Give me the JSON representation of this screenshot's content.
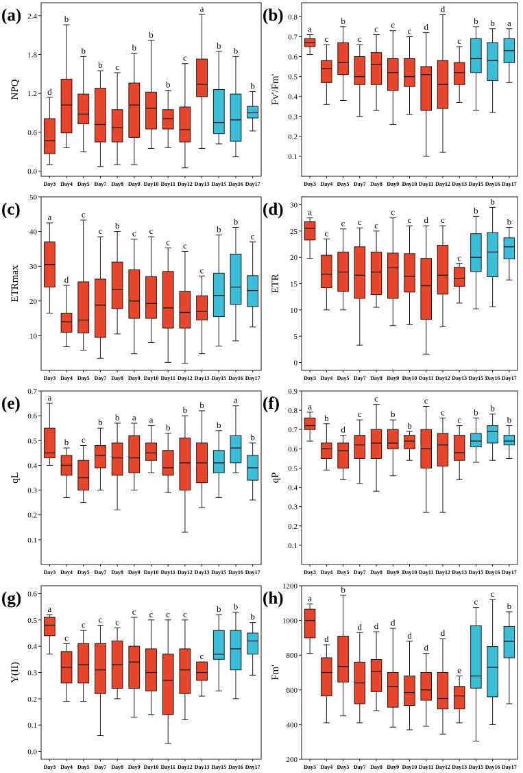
{
  "figure": {
    "colors": {
      "red": "#e8452d",
      "blue": "#3cbdd8",
      "line": "#1a1a1a"
    },
    "days": [
      "Day3",
      "Day4",
      "Day5",
      "Day7",
      "Day8",
      "Day9",
      "Day10",
      "Day11",
      "Day12",
      "Day13",
      "Day15",
      "Day16",
      "Day17"
    ],
    "groups": [
      "red",
      "red",
      "red",
      "red",
      "red",
      "red",
      "red",
      "red",
      "red",
      "red",
      "blue",
      "blue",
      "blue"
    ]
  },
  "chart_data": [
    {
      "type": "box",
      "panel": "(a)",
      "ylabel": "NPQ",
      "ylim": [
        -0.08,
        2.6
      ],
      "ticks": [
        0.0,
        0.6,
        1.2,
        1.8,
        2.4
      ],
      "tick_labels": [
        "0.0",
        "0.6",
        "1.2",
        "1.8",
        "2.4"
      ],
      "letters": [
        "d",
        "b",
        "b",
        "b",
        "c",
        "b",
        "b",
        "b",
        "c",
        "a",
        "b",
        "b",
        "b"
      ],
      "boxes": [
        {
          "min": 0.1,
          "q1": 0.27,
          "median": 0.47,
          "q3": 0.81,
          "max": 1.14
        },
        {
          "min": 0.36,
          "q1": 0.59,
          "median": 1.02,
          "q3": 1.42,
          "max": 2.26
        },
        {
          "min": 0.3,
          "q1": 0.73,
          "median": 0.88,
          "q3": 1.19,
          "max": 1.77
        },
        {
          "min": 0.07,
          "q1": 0.45,
          "median": 0.72,
          "q3": 1.28,
          "max": 1.55
        },
        {
          "min": 0.1,
          "q1": 0.45,
          "median": 0.67,
          "q3": 0.95,
          "max": 1.52
        },
        {
          "min": 0.1,
          "q1": 0.52,
          "median": 1.02,
          "q3": 1.36,
          "max": 1.82
        },
        {
          "min": 0.35,
          "q1": 0.65,
          "median": 0.97,
          "q3": 1.22,
          "max": 2.02
        },
        {
          "min": 0.36,
          "q1": 0.65,
          "median": 0.81,
          "q3": 0.95,
          "max": 1.25
        },
        {
          "min": 0.05,
          "q1": 0.45,
          "median": 0.64,
          "q3": 0.99,
          "max": 1.66
        },
        {
          "min": 0.35,
          "q1": 1.15,
          "median": 1.34,
          "q3": 1.73,
          "max": 2.42
        },
        {
          "min": 0.42,
          "q1": 0.58,
          "median": 0.75,
          "q3": 1.26,
          "max": 1.85
        },
        {
          "min": 0.22,
          "q1": 0.46,
          "median": 0.79,
          "q3": 1.19,
          "max": 1.77
        },
        {
          "min": 0.62,
          "q1": 0.82,
          "median": 0.9,
          "q3": 1.0,
          "max": 1.23
        }
      ]
    },
    {
      "type": "box",
      "panel": "(b)",
      "ylabel": "Fv'/Fm'",
      "ylim": [
        0.0,
        0.87
      ],
      "ticks": [
        0.1,
        0.2,
        0.3,
        0.4,
        0.5,
        0.6,
        0.7,
        0.8
      ],
      "tick_labels": [
        "0.1",
        "0.2",
        "0.3",
        "0.4",
        "0.5",
        "0.6",
        "0.7",
        "0.8"
      ],
      "letters": [
        "a",
        "c",
        "b",
        "c",
        "c",
        "c",
        "c",
        "d",
        "d",
        "c",
        "b",
        "b",
        "a"
      ],
      "boxes": [
        {
          "min": 0.61,
          "q1": 0.65,
          "median": 0.67,
          "q3": 0.69,
          "max": 0.71
        },
        {
          "min": 0.36,
          "q1": 0.47,
          "median": 0.54,
          "q3": 0.58,
          "max": 0.66
        },
        {
          "min": 0.38,
          "q1": 0.51,
          "median": 0.57,
          "q3": 0.67,
          "max": 0.75
        },
        {
          "min": 0.3,
          "q1": 0.46,
          "median": 0.5,
          "q3": 0.6,
          "max": 0.66
        },
        {
          "min": 0.33,
          "q1": 0.46,
          "median": 0.56,
          "q3": 0.62,
          "max": 0.71
        },
        {
          "min": 0.26,
          "q1": 0.43,
          "median": 0.52,
          "q3": 0.59,
          "max": 0.73
        },
        {
          "min": 0.31,
          "q1": 0.45,
          "median": 0.5,
          "q3": 0.59,
          "max": 0.7
        },
        {
          "min": 0.1,
          "q1": 0.33,
          "median": 0.51,
          "q3": 0.55,
          "max": 0.72
        },
        {
          "min": 0.12,
          "q1": 0.34,
          "median": 0.46,
          "q3": 0.58,
          "max": 0.81
        },
        {
          "min": 0.37,
          "q1": 0.46,
          "median": 0.52,
          "q3": 0.57,
          "max": 0.65
        },
        {
          "min": 0.33,
          "q1": 0.52,
          "median": 0.59,
          "q3": 0.69,
          "max": 0.75
        },
        {
          "min": 0.32,
          "q1": 0.48,
          "median": 0.58,
          "q3": 0.67,
          "max": 0.74
        },
        {
          "min": 0.47,
          "q1": 0.57,
          "median": 0.63,
          "q3": 0.69,
          "max": 0.74
        }
      ]
    },
    {
      "type": "box",
      "panel": "(c)",
      "ylabel": "ETRmax",
      "ylim": [
        0,
        50
      ],
      "ticks": [
        10,
        20,
        30,
        40,
        50
      ],
      "tick_labels": [
        "10",
        "20",
        "30",
        "40",
        "50"
      ],
      "letters": [
        "a",
        "d",
        "c",
        "c",
        "b",
        "c",
        "c",
        "c",
        "c",
        "c",
        "b",
        "b",
        "c"
      ],
      "boxes": [
        {
          "min": 16.5,
          "q1": 24.0,
          "median": 30.5,
          "q3": 37.0,
          "max": 42.5
        },
        {
          "min": 6.8,
          "q1": 11.0,
          "median": 14.0,
          "q3": 16.5,
          "max": 24.5
        },
        {
          "min": 5.8,
          "q1": 10.8,
          "median": 14.5,
          "q3": 25.5,
          "max": 43.3
        },
        {
          "min": 3.5,
          "q1": 9.5,
          "median": 18.8,
          "q3": 26.3,
          "max": 38.5
        },
        {
          "min": 10.5,
          "q1": 17.8,
          "median": 23.3,
          "q3": 31.2,
          "max": 40.0
        },
        {
          "min": 4.8,
          "q1": 15.0,
          "median": 20.0,
          "q3": 29.0,
          "max": 37.8
        },
        {
          "min": 8.0,
          "q1": 15.0,
          "median": 19.3,
          "q3": 27.0,
          "max": 38.5
        },
        {
          "min": 2.3,
          "q1": 12.2,
          "median": 18.0,
          "q3": 28.5,
          "max": 35.3
        },
        {
          "min": 2.0,
          "q1": 12.2,
          "median": 16.7,
          "q3": 22.8,
          "max": 34.3
        },
        {
          "min": 4.8,
          "q1": 14.5,
          "median": 17.0,
          "q3": 21.5,
          "max": 27.2
        },
        {
          "min": 7.0,
          "q1": 15.5,
          "median": 21.6,
          "q3": 28.0,
          "max": 39.0
        },
        {
          "min": 8.5,
          "q1": 19.0,
          "median": 24.0,
          "q3": 33.5,
          "max": 41.2
        },
        {
          "min": 12.5,
          "q1": 18.4,
          "median": 23.0,
          "q3": 27.3,
          "max": 37.0
        }
      ]
    },
    {
      "type": "box",
      "panel": "(d)",
      "ylabel": "ETR",
      "ylim": [
        -1.5,
        31.5
      ],
      "ticks": [
        0,
        5,
        10,
        15,
        20,
        25,
        30
      ],
      "tick_labels": [
        "0",
        "5",
        "10",
        "15",
        "20",
        "25",
        "30"
      ],
      "letters": [
        "a",
        "c",
        "c",
        "c",
        "c",
        "c",
        "c",
        "d",
        "c",
        "c",
        "b",
        "b",
        "b"
      ],
      "boxes": [
        {
          "min": 19.8,
          "q1": 23.3,
          "median": 25.5,
          "q3": 26.8,
          "max": 27.5
        },
        {
          "min": 10.0,
          "q1": 14.2,
          "median": 16.8,
          "q3": 20.4,
          "max": 23.5
        },
        {
          "min": 10.0,
          "q1": 13.5,
          "median": 17.2,
          "q3": 21.0,
          "max": 25.4
        },
        {
          "min": 3.3,
          "q1": 12.2,
          "median": 16.6,
          "q3": 22.0,
          "max": 25.6
        },
        {
          "min": 10.5,
          "q1": 12.9,
          "median": 17.2,
          "q3": 21.0,
          "max": 25.0
        },
        {
          "min": 7.0,
          "q1": 12.2,
          "median": 18.0,
          "q3": 20.8,
          "max": 27.5
        },
        {
          "min": 7.2,
          "q1": 13.4,
          "median": 16.4,
          "q3": 20.7,
          "max": 26.0
        },
        {
          "min": 1.6,
          "q1": 8.2,
          "median": 14.6,
          "q3": 19.8,
          "max": 26.0
        },
        {
          "min": 6.8,
          "q1": 13.0,
          "median": 16.6,
          "q3": 22.3,
          "max": 26.0
        },
        {
          "min": 11.3,
          "q1": 14.5,
          "median": 16.0,
          "q3": 18.1,
          "max": 18.8
        },
        {
          "min": 10.2,
          "q1": 17.3,
          "median": 20.0,
          "q3": 24.5,
          "max": 27.8
        },
        {
          "min": 10.6,
          "q1": 16.3,
          "median": 21.0,
          "q3": 24.7,
          "max": 29.5
        },
        {
          "min": 15.7,
          "q1": 19.7,
          "median": 22.0,
          "q3": 23.7,
          "max": 25.7
        }
      ]
    },
    {
      "type": "box",
      "panel": "(e)",
      "ylabel": "qL",
      "ylim": [
        0.0,
        0.7
      ],
      "ticks": [
        0.1,
        0.2,
        0.3,
        0.4,
        0.5,
        0.6,
        0.7
      ],
      "tick_labels": [
        "0.1",
        "0.2",
        "0.3",
        "0.4",
        "0.5",
        "0.6",
        "0.7"
      ],
      "letters": [
        "a",
        "b",
        "c",
        "b",
        "b",
        "a",
        "a",
        "b",
        "b",
        "b",
        "b",
        "a",
        "b"
      ],
      "boxes": [
        {
          "min": 0.4,
          "q1": 0.43,
          "median": 0.45,
          "q3": 0.55,
          "max": 0.65
        },
        {
          "min": 0.27,
          "q1": 0.36,
          "median": 0.4,
          "q3": 0.44,
          "max": 0.47
        },
        {
          "min": 0.25,
          "q1": 0.3,
          "median": 0.35,
          "q3": 0.42,
          "max": 0.48
        },
        {
          "min": 0.3,
          "q1": 0.39,
          "median": 0.44,
          "q3": 0.48,
          "max": 0.55
        },
        {
          "min": 0.22,
          "q1": 0.36,
          "median": 0.43,
          "q3": 0.49,
          "max": 0.57
        },
        {
          "min": 0.3,
          "q1": 0.37,
          "median": 0.43,
          "q3": 0.52,
          "max": 0.57
        },
        {
          "min": 0.37,
          "q1": 0.42,
          "median": 0.45,
          "q3": 0.49,
          "max": 0.56
        },
        {
          "min": 0.29,
          "q1": 0.36,
          "median": 0.39,
          "q3": 0.46,
          "max": 0.53
        },
        {
          "min": 0.13,
          "q1": 0.3,
          "median": 0.41,
          "q3": 0.51,
          "max": 0.6
        },
        {
          "min": 0.23,
          "q1": 0.33,
          "median": 0.41,
          "q3": 0.49,
          "max": 0.62
        },
        {
          "min": 0.27,
          "q1": 0.37,
          "median": 0.41,
          "q3": 0.46,
          "max": 0.54
        },
        {
          "min": 0.37,
          "q1": 0.41,
          "median": 0.47,
          "q3": 0.52,
          "max": 0.64
        },
        {
          "min": 0.26,
          "q1": 0.34,
          "median": 0.39,
          "q3": 0.44,
          "max": 0.49
        }
      ]
    },
    {
      "type": "box",
      "panel": "(f)",
      "ylabel": "qP",
      "ylim": [
        0.0,
        0.9
      ],
      "ticks": [
        0.1,
        0.2,
        0.3,
        0.4,
        0.5,
        0.6,
        0.7,
        0.8,
        0.9
      ],
      "tick_labels": [
        "0.1",
        "0.2",
        "0.3",
        "0.4",
        "0.5",
        "0.6",
        "0.7",
        "0.8",
        "0.9"
      ],
      "letters": [
        "a",
        "b",
        "d",
        "c",
        "c",
        "b",
        "b",
        "c",
        "c",
        "c",
        "b",
        "b",
        "b"
      ],
      "boxes": [
        {
          "min": 0.64,
          "q1": 0.7,
          "median": 0.72,
          "q3": 0.76,
          "max": 0.79
        },
        {
          "min": 0.49,
          "q1": 0.55,
          "median": 0.6,
          "q3": 0.63,
          "max": 0.73
        },
        {
          "min": 0.44,
          "q1": 0.5,
          "median": 0.59,
          "q3": 0.63,
          "max": 0.67
        },
        {
          "min": 0.42,
          "q1": 0.55,
          "median": 0.62,
          "q3": 0.67,
          "max": 0.75
        },
        {
          "min": 0.38,
          "q1": 0.55,
          "median": 0.63,
          "q3": 0.7,
          "max": 0.83
        },
        {
          "min": 0.46,
          "q1": 0.6,
          "median": 0.63,
          "q3": 0.7,
          "max": 0.75
        },
        {
          "min": 0.54,
          "q1": 0.6,
          "median": 0.64,
          "q3": 0.67,
          "max": 0.69
        },
        {
          "min": 0.27,
          "q1": 0.5,
          "median": 0.6,
          "q3": 0.7,
          "max": 0.82
        },
        {
          "min": 0.27,
          "q1": 0.51,
          "median": 0.62,
          "q3": 0.68,
          "max": 0.76
        },
        {
          "min": 0.44,
          "q1": 0.54,
          "median": 0.58,
          "q3": 0.67,
          "max": 0.72
        },
        {
          "min": 0.53,
          "q1": 0.61,
          "median": 0.64,
          "q3": 0.68,
          "max": 0.76
        },
        {
          "min": 0.54,
          "q1": 0.63,
          "median": 0.69,
          "q3": 0.72,
          "max": 0.78
        },
        {
          "min": 0.55,
          "q1": 0.62,
          "median": 0.64,
          "q3": 0.67,
          "max": 0.72
        }
      ]
    },
    {
      "type": "box",
      "panel": "(g)",
      "ylabel": "Y(II)",
      "ylim": [
        -0.03,
        0.63
      ],
      "ticks": [
        0.0,
        0.1,
        0.2,
        0.3,
        0.4,
        0.5,
        0.6
      ],
      "tick_labels": [
        "0.0",
        "0.1",
        "0.2",
        "0.3",
        "0.4",
        "0.5",
        "0.6"
      ],
      "letters": [
        "a",
        "c",
        "c",
        "c",
        "c",
        "c",
        "c",
        "c",
        "c",
        "c",
        "b",
        "b",
        "b"
      ],
      "boxes": [
        {
          "min": 0.37,
          "q1": 0.44,
          "median": 0.48,
          "q3": 0.51,
          "max": 0.52
        },
        {
          "min": 0.19,
          "q1": 0.26,
          "median": 0.32,
          "q3": 0.38,
          "max": 0.41
        },
        {
          "min": 0.19,
          "q1": 0.26,
          "median": 0.33,
          "q3": 0.41,
          "max": 0.46
        },
        {
          "min": 0.06,
          "q1": 0.22,
          "median": 0.31,
          "q3": 0.41,
          "max": 0.48
        },
        {
          "min": 0.2,
          "q1": 0.24,
          "median": 0.33,
          "q3": 0.42,
          "max": 0.47
        },
        {
          "min": 0.13,
          "q1": 0.24,
          "median": 0.34,
          "q3": 0.4,
          "max": 0.51
        },
        {
          "min": 0.14,
          "q1": 0.23,
          "median": 0.3,
          "q3": 0.39,
          "max": 0.5
        },
        {
          "min": 0.03,
          "q1": 0.14,
          "median": 0.27,
          "q3": 0.37,
          "max": 0.5
        },
        {
          "min": 0.12,
          "q1": 0.22,
          "median": 0.31,
          "q3": 0.39,
          "max": 0.5
        },
        {
          "min": 0.21,
          "q1": 0.27,
          "median": 0.3,
          "q3": 0.34,
          "max": 0.34
        },
        {
          "min": 0.23,
          "q1": 0.35,
          "median": 0.37,
          "q3": 0.46,
          "max": 0.52
        },
        {
          "min": 0.2,
          "q1": 0.31,
          "median": 0.39,
          "q3": 0.46,
          "max": 0.53
        },
        {
          "min": 0.29,
          "q1": 0.37,
          "median": 0.42,
          "q3": 0.45,
          "max": 0.49
        }
      ]
    },
    {
      "type": "box",
      "panel": "(h)",
      "ylabel": "Fm'",
      "ylim": [
        200,
        1200
      ],
      "ticks": [
        200,
        400,
        600,
        800,
        1000,
        1200
      ],
      "tick_labels": [
        "200",
        "400",
        "600",
        "800",
        "1000",
        "1200"
      ],
      "letters": [
        "a",
        "d",
        "b",
        "d",
        "d",
        "d",
        "d",
        "d",
        "d",
        "e",
        "c",
        "c",
        "b"
      ],
      "boxes": [
        {
          "min": 810,
          "q1": 900,
          "median": 1000,
          "q3": 1065,
          "max": 1095
        },
        {
          "min": 410,
          "q1": 565,
          "median": 700,
          "q3": 785,
          "max": 860
        },
        {
          "min": 450,
          "q1": 645,
          "median": 735,
          "q3": 910,
          "max": 1145
        },
        {
          "min": 410,
          "q1": 520,
          "median": 640,
          "q3": 760,
          "max": 930
        },
        {
          "min": 480,
          "q1": 590,
          "median": 705,
          "q3": 775,
          "max": 935
        },
        {
          "min": 385,
          "q1": 500,
          "median": 620,
          "q3": 700,
          "max": 955
        },
        {
          "min": 370,
          "q1": 510,
          "median": 585,
          "q3": 680,
          "max": 880
        },
        {
          "min": 390,
          "q1": 540,
          "median": 600,
          "q3": 700,
          "max": 810
        },
        {
          "min": 345,
          "q1": 490,
          "median": 550,
          "q3": 700,
          "max": 895
        },
        {
          "min": 410,
          "q1": 490,
          "median": 565,
          "q3": 620,
          "max": 680
        },
        {
          "min": 305,
          "q1": 610,
          "median": 680,
          "q3": 970,
          "max": 1075
        },
        {
          "min": 400,
          "q1": 560,
          "median": 730,
          "q3": 850,
          "max": 1120
        },
        {
          "min": 520,
          "q1": 785,
          "median": 880,
          "q3": 965,
          "max": 1050
        }
      ]
    }
  ]
}
